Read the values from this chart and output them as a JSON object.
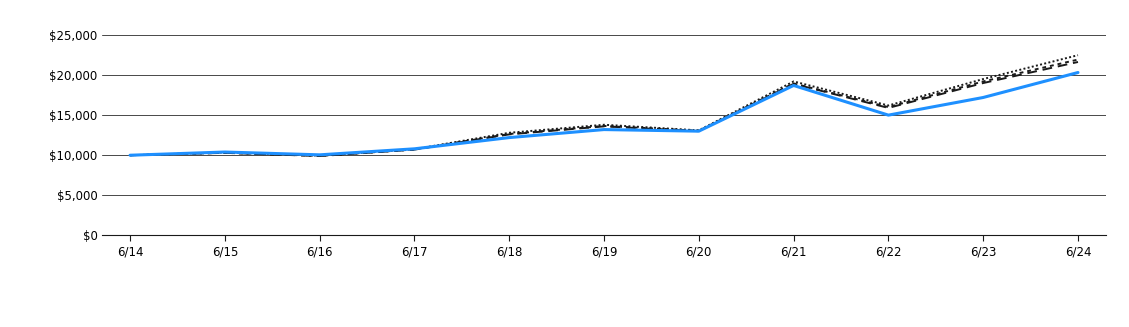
{
  "x_labels": [
    "6/14",
    "6/15",
    "6/16",
    "6/17",
    "6/18",
    "6/19",
    "6/20",
    "6/21",
    "6/22",
    "6/23",
    "6/24"
  ],
  "x_positions": [
    0,
    1,
    2,
    3,
    4,
    5,
    6,
    7,
    8,
    9,
    10
  ],
  "fund_values": [
    10000,
    10400,
    10050,
    10800,
    12200,
    13200,
    13000,
    18700,
    15000,
    17200,
    20314
  ],
  "msci_values": [
    10000,
    10350,
    9950,
    10750,
    12800,
    13800,
    13100,
    19200,
    16200,
    19500,
    22474
  ],
  "sp_values": [
    10000,
    10300,
    9900,
    10700,
    12600,
    13600,
    13000,
    18900,
    15900,
    19000,
    21628
  ],
  "jpm_values": [
    10000,
    10300,
    9920,
    10720,
    12650,
    13650,
    13050,
    18950,
    16000,
    19200,
    21926
  ],
  "fund_color": "#1e90ff",
  "dark_color": "#1a1a1a",
  "yticks": [
    0,
    5000,
    10000,
    15000,
    20000,
    25000
  ],
  "ytick_labels": [
    "$0",
    "$5,000",
    "$10,000",
    "$15,000",
    "$20,000",
    "$25,000"
  ],
  "ylim": [
    0,
    26500
  ],
  "bg_color": "#ffffff",
  "grid_color": "#000000",
  "font_family": "DejaVu Sans"
}
